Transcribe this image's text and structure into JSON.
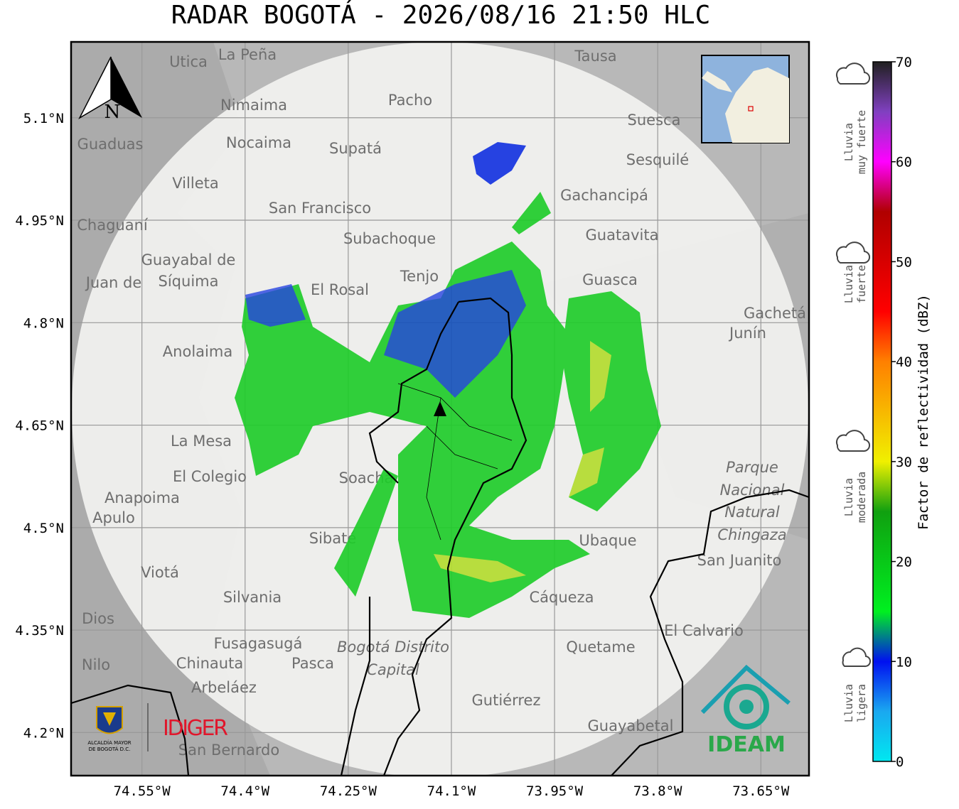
{
  "title": "RADAR BOGOTÁ - 2026/08/16 21:50 HLC",
  "map": {
    "xlim": [
      -74.653,
      -73.58
    ],
    "ylim": [
      4.137,
      5.211
    ],
    "xticks": [
      {
        "value": -74.55,
        "label": "74.55°W"
      },
      {
        "value": -74.4,
        "label": "74.4°W"
      },
      {
        "value": -74.25,
        "label": "74.25°W"
      },
      {
        "value": -74.1,
        "label": "74.1°W"
      },
      {
        "value": -73.95,
        "label": "73.95°W"
      },
      {
        "value": -73.8,
        "label": "73.8°W"
      },
      {
        "value": -73.65,
        "label": "73.65°W"
      }
    ],
    "yticks": [
      {
        "value": 5.1,
        "label": "5.1°N"
      },
      {
        "value": 4.95,
        "label": "4.95°N"
      },
      {
        "value": 4.8,
        "label": "4.8°N"
      },
      {
        "value": 4.65,
        "label": "4.65°N"
      },
      {
        "value": 4.5,
        "label": "4.5°N"
      },
      {
        "value": 4.35,
        "label": "4.35°N"
      },
      {
        "value": 4.2,
        "label": "4.2°N"
      }
    ],
    "grid": true,
    "north": "N",
    "places": [
      "La Peña",
      "Utica",
      "Tausa",
      "Pacho",
      "Nimaima",
      "Suesca",
      "Guaduas",
      "Nocaima",
      "Supatá",
      "Sesquilé",
      "Villeta",
      "Gachancipá",
      "San Francisco",
      "Chaguaní",
      "Guatavita",
      "Subachoque",
      "Guayabal de",
      "Síquima",
      "Tenjo",
      "Guasca",
      "El Rosal",
      "Juan de",
      "Gachetá",
      "Junín",
      "Anolaima",
      "La Mesa",
      "El Colegio",
      "Soacha",
      "Parque",
      "Nacional",
      "Natural",
      "Chingaza",
      "Anapoima",
      "Apulo",
      "Sibaté",
      "Ubaque",
      "San Juanito",
      "Viotá",
      "Silvania",
      "Cáqueza",
      "Dios",
      "El Calvario",
      "Fusagasugá",
      "Bogotá Distrito",
      "Capital",
      "Quetame",
      "Nilo",
      "Chinauta",
      "Pasca",
      "Arbeláez",
      "Gutiérrez",
      "Guayabetal",
      "San Bernardo"
    ],
    "logos": {
      "alcaldia": "ALCALDÍA MAYOR",
      "alcaldia2": "DE BOGOTÁ D.C.",
      "idiger": "IDIGER",
      "ideam": "IDEAM"
    }
  },
  "colorbar": {
    "label": "Factor de reflectividad (dBZ)",
    "lim": [
      0,
      70
    ],
    "ticks": [
      0,
      10,
      20,
      30,
      40,
      50,
      60,
      70
    ],
    "stops": [
      {
        "value": 0,
        "color": "#00e8f0"
      },
      {
        "value": 5,
        "color": "#1aa8f0"
      },
      {
        "value": 10,
        "color": "#0010f0"
      },
      {
        "value": 15,
        "color": "#00f020"
      },
      {
        "value": 25,
        "color": "#10a010"
      },
      {
        "value": 30,
        "color": "#f0f000"
      },
      {
        "value": 40,
        "color": "#ff8000"
      },
      {
        "value": 45,
        "color": "#ff0000"
      },
      {
        "value": 55,
        "color": "#b00000"
      },
      {
        "value": 60,
        "color": "#ff00ff"
      },
      {
        "value": 65,
        "color": "#8040c0"
      },
      {
        "value": 70,
        "color": "#202020"
      }
    ],
    "rain_labels": [
      [
        "Lluvia",
        "muy fuerte"
      ],
      [
        "Lluvia",
        "fuerte"
      ],
      [
        "Lluvia",
        "moderada"
      ],
      [
        "Lluvia",
        "ligera"
      ]
    ]
  }
}
